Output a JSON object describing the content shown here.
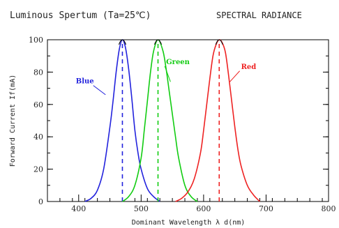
{
  "chart_data": {
    "type": "line",
    "title": "Luminous Spertum (Ta=25℃)",
    "subtitle": "SPECTRAL RADIANCE",
    "xlabel": "Dominant Wavelength λ d(nm)",
    "ylabel": "Forward Current If(mA)",
    "xlim": [
      350,
      800
    ],
    "ylim": [
      0,
      100
    ],
    "x_ticks": [
      400,
      500,
      600,
      700,
      800
    ],
    "y_ticks": [
      0,
      20,
      40,
      60,
      80,
      100
    ],
    "grid": false,
    "series": [
      {
        "name": "Blue",
        "color": "#2222dd",
        "peak": 470,
        "points": [
          [
            410,
            0
          ],
          [
            420,
            2
          ],
          [
            430,
            7
          ],
          [
            440,
            20
          ],
          [
            450,
            46
          ],
          [
            455,
            62
          ],
          [
            460,
            80
          ],
          [
            465,
            94
          ],
          [
            470,
            100
          ],
          [
            475,
            95
          ],
          [
            480,
            82
          ],
          [
            485,
            64
          ],
          [
            490,
            44
          ],
          [
            495,
            30
          ],
          [
            500,
            20
          ],
          [
            510,
            8
          ],
          [
            520,
            3
          ],
          [
            530,
            0
          ]
        ]
      },
      {
        "name": "Green",
        "color": "#11cc11",
        "peak": 527,
        "points": [
          [
            470,
            0
          ],
          [
            480,
            3
          ],
          [
            490,
            10
          ],
          [
            500,
            27
          ],
          [
            505,
            44
          ],
          [
            510,
            62
          ],
          [
            515,
            80
          ],
          [
            520,
            93
          ],
          [
            527,
            100
          ],
          [
            535,
            93
          ],
          [
            540,
            82
          ],
          [
            545,
            68
          ],
          [
            550,
            54
          ],
          [
            555,
            40
          ],
          [
            560,
            27
          ],
          [
            570,
            10
          ],
          [
            580,
            3
          ],
          [
            590,
            0
          ]
        ]
      },
      {
        "name": "Red",
        "color": "#ee2222",
        "peak": 625,
        "points": [
          [
            555,
            0
          ],
          [
            565,
            2
          ],
          [
            575,
            6
          ],
          [
            585,
            14
          ],
          [
            595,
            30
          ],
          [
            600,
            44
          ],
          [
            605,
            60
          ],
          [
            610,
            76
          ],
          [
            615,
            90
          ],
          [
            620,
            97
          ],
          [
            625,
            100
          ],
          [
            630,
            98
          ],
          [
            635,
            92
          ],
          [
            640,
            78
          ],
          [
            645,
            62
          ],
          [
            650,
            46
          ],
          [
            655,
            32
          ],
          [
            660,
            22
          ],
          [
            670,
            10
          ],
          [
            680,
            4
          ],
          [
            690,
            0
          ]
        ]
      }
    ],
    "annotations": [
      {
        "text": "Blue",
        "series": 0
      },
      {
        "text": "Green",
        "series": 1
      },
      {
        "text": "Red",
        "series": 2
      }
    ]
  }
}
